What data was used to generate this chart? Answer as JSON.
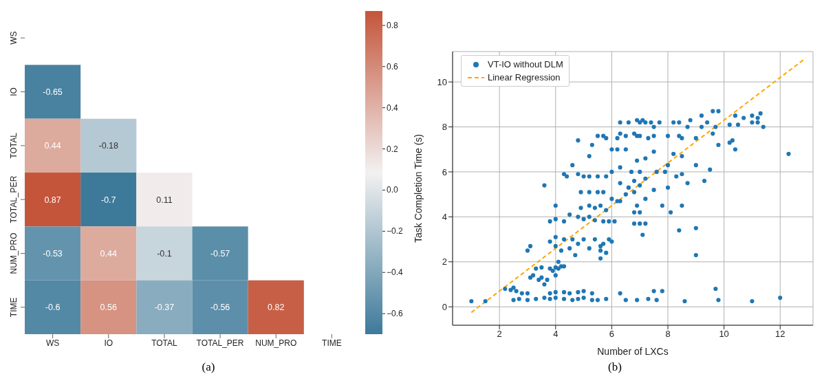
{
  "chart_data": [
    {
      "type": "heatmap",
      "categories": [
        "WS",
        "IO",
        "TOTAL",
        "TOTAL_PER",
        "NUM_PRO",
        "TIME"
      ],
      "y_categories": [
        "WS",
        "IO",
        "TOTAL",
        "TOTAL_PER",
        "NUM_PRO",
        "TIME"
      ],
      "cells": [
        [
          null,
          null,
          null,
          null,
          null,
          null
        ],
        [
          -0.65,
          null,
          null,
          null,
          null,
          null
        ],
        [
          0.44,
          -0.18,
          null,
          null,
          null,
          null
        ],
        [
          0.87,
          -0.7,
          0.11,
          null,
          null,
          null
        ],
        [
          -0.53,
          0.44,
          -0.1,
          -0.57,
          null,
          null
        ],
        [
          -0.6,
          0.56,
          -0.37,
          -0.56,
          0.82,
          null
        ]
      ],
      "data_labels": true,
      "clim": [
        -0.7,
        0.87
      ],
      "cticks": [
        {
          "value": -0.6,
          "label": "−0.6"
        },
        {
          "value": -0.4,
          "label": "−0.4"
        },
        {
          "value": -0.2,
          "label": "−0.2"
        },
        {
          "value": 0,
          "label": "0.0"
        },
        0.2,
        0.4,
        0.6,
        0.8
      ],
      "annotations": [
        "(a)"
      ]
    },
    {
      "type": "scatter",
      "xlabel": "Number of LXCs",
      "ylabel": "Task Completion Time (s)",
      "xlim": [
        0.33,
        13.17
      ],
      "ylim": [
        -0.82,
        11.35
      ],
      "xticks": [
        2,
        4,
        6,
        8,
        10,
        12
      ],
      "yticks": [
        0,
        2,
        4,
        6,
        8,
        10
      ],
      "grid": true,
      "legend": "top left",
      "annotations": [
        "(b)"
      ],
      "series": [
        {
          "type": "scatter",
          "name": "VT-IO without DLM",
          "color": "#1f77b4",
          "marker": "circle",
          "x": [
            1.0,
            1.5,
            2.2,
            2.4,
            2.6,
            2.8,
            3.0,
            2.5,
            2.5,
            2.7,
            3.0,
            3.3,
            3.6,
            3.8,
            4.0,
            4.3,
            4.6,
            4.8,
            5.0,
            5.3,
            5.5,
            5.8,
            3.8,
            4.0,
            4.3,
            4.5,
            4.8,
            5.0,
            5.3,
            3.1,
            3.2,
            3.4,
            3.5,
            3.7,
            3.6,
            3.3,
            3.5,
            3.0,
            3.1,
            3.8,
            3.9,
            4.0,
            4.1,
            4.2,
            4.0,
            4.1,
            4.3,
            3.8,
            4.0,
            4.0,
            4.2,
            4.3,
            4.5,
            4.6,
            4.7,
            4.8,
            5.0,
            5.2,
            5.4,
            5.6,
            5.8,
            5.9,
            5.7,
            6.0,
            5.6,
            5.6,
            3.8,
            4.0,
            4.3,
            4.5,
            4.8,
            5.0,
            5.2,
            5.4,
            5.7,
            5.9,
            6.1,
            4.9,
            5.2,
            5.4,
            5.6,
            5.8,
            4.0,
            5.2,
            5.5,
            5.7,
            6.0,
            6.3,
            6.5,
            3.6,
            4.3,
            4.4,
            4.6,
            4.8,
            5.0,
            5.2,
            5.5,
            5.8,
            6.0,
            6.3,
            4.8,
            4.9,
            5.2,
            5.3,
            5.5,
            5.7,
            5.8,
            6.2,
            6.0,
            6.3,
            6.5,
            6.9,
            6.9,
            7.1,
            6.3,
            6.6,
            6.8,
            7.0,
            6.8,
            7.0,
            6.9,
            6.3,
            6.6,
            7.0,
            7.2,
            7.4,
            7.7,
            8.2,
            8.4,
            8.8,
            9.2,
            9.6,
            9.8,
            7.5,
            8.7,
            9.2,
            9.4,
            9.7,
            10.2,
            10.5,
            10.7,
            11.0,
            11.2,
            11.4,
            11.0,
            11.2,
            10.4,
            11.3,
            10.2,
            10.4,
            10.3,
            9.8,
            9.6,
            9.0,
            6.5,
            6.8,
            7.0,
            7.3,
            7.5,
            8.0,
            8.4,
            8.5,
            6.2,
            6.9,
            7.2,
            7.5,
            8.2,
            8.5,
            8.0,
            9.0,
            9.5,
            6.7,
            7.0,
            7.6,
            7.9,
            8.3,
            8.5,
            6.6,
            7.5,
            7.2,
            8.0,
            8.7,
            9.3,
            6.2,
            6.8,
            7.2,
            7.8,
            8.1,
            8.5,
            6.8,
            7.0,
            7.2,
            8.4,
            9.0,
            7.1,
            9.0,
            9.7,
            6.3,
            6.5,
            6.9,
            7.3,
            7.5,
            7.8,
            7.6,
            8.6,
            9.8,
            11.0,
            12.0,
            12.3
          ],
          "values": [
            0.25,
            0.25,
            0.8,
            0.75,
            0.7,
            0.6,
            0.6,
            0.85,
            0.3,
            0.35,
            0.3,
            0.35,
            0.4,
            0.35,
            0.4,
            0.35,
            0.3,
            0.35,
            0.4,
            0.3,
            0.3,
            0.35,
            0.6,
            0.65,
            0.65,
            0.6,
            0.65,
            0.7,
            0.6,
            1.3,
            1.4,
            1.2,
            1.3,
            1.2,
            1.0,
            1.7,
            1.75,
            2.5,
            2.7,
            1.7,
            1.6,
            1.75,
            1.7,
            1.8,
            1.4,
            2.0,
            1.8,
            2.9,
            2.7,
            3.1,
            2.5,
            3.0,
            2.6,
            3.0,
            2.3,
            2.8,
            3.0,
            2.6,
            3.0,
            2.5,
            2.4,
            3.0,
            2.8,
            2.9,
            2.7,
            2.15,
            3.8,
            3.9,
            3.8,
            4.1,
            4.0,
            3.9,
            4.0,
            3.85,
            3.8,
            3.8,
            3.8,
            4.4,
            4.5,
            4.4,
            4.5,
            4.3,
            4.5,
            5.1,
            5.1,
            5.1,
            4.8,
            4.7,
            5.0,
            5.4,
            5.9,
            5.8,
            6.3,
            5.9,
            5.8,
            5.8,
            5.8,
            5.8,
            6.0,
            6.2,
            7.4,
            5.1,
            6.7,
            7.2,
            7.6,
            7.6,
            7.5,
            7.5,
            7.0,
            7.7,
            7.0,
            7.6,
            8.3,
            8.3,
            5.5,
            5.3,
            5.6,
            5.4,
            5.1,
            4.2,
            4.5,
            8.2,
            8.2,
            8.2,
            8.2,
            8.2,
            8.2,
            8.2,
            8.2,
            8.3,
            8.5,
            8.7,
            8.7,
            8.0,
            8.0,
            8.0,
            8.2,
            8.0,
            8.1,
            8.1,
            8.4,
            8.2,
            8.2,
            8.0,
            8.5,
            8.4,
            8.5,
            8.6,
            7.3,
            7.0,
            7.4,
            7.2,
            7.7,
            7.5,
            7.6,
            7.7,
            7.6,
            7.5,
            7.6,
            7.6,
            7.6,
            7.5,
            7.0,
            6.5,
            6.6,
            6.9,
            6.8,
            6.7,
            6.3,
            6.3,
            6.1,
            6.0,
            6.0,
            6.0,
            6.0,
            5.8,
            5.9,
            5.3,
            5.2,
            5.7,
            5.3,
            5.5,
            5.6,
            4.7,
            4.2,
            4.8,
            4.5,
            4.2,
            4.5,
            3.7,
            3.7,
            3.7,
            3.4,
            3.5,
            3.2,
            2.3,
            0.8,
            0.6,
            0.3,
            0.3,
            0.35,
            0.7,
            0.7,
            0.3,
            0.25,
            0.3,
            0.25,
            0.4,
            6.8
          ]
        },
        {
          "type": "line",
          "name": "Linear Regression",
          "color": "#ffa500",
          "line_style": "dashed",
          "x": [
            1,
            12.9
          ],
          "values": [
            -0.25,
            11.05
          ]
        }
      ]
    }
  ]
}
